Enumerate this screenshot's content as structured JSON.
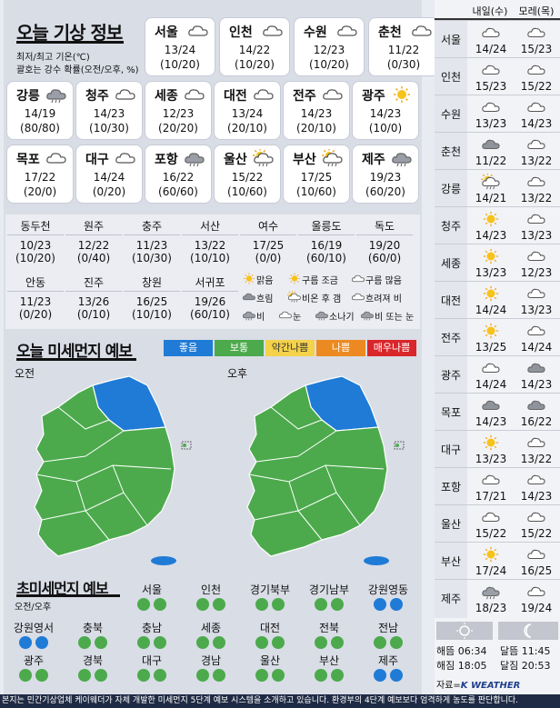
{
  "weather": {
    "title": "오늘 기상 정보",
    "note1": "최저/최고 기온(℃)",
    "note2": "괄호는 강수 확률(오전/오후, %)",
    "cards": [
      {
        "name": "서울",
        "temp": "13/24",
        "rain": "(10/20)",
        "icon": "cloud-icon"
      },
      {
        "name": "인천",
        "temp": "14/22",
        "rain": "(10/20)",
        "icon": "cloud-icon"
      },
      {
        "name": "수원",
        "temp": "12/23",
        "rain": "(10/20)",
        "icon": "cloud-icon"
      },
      {
        "name": "춘천",
        "temp": "11/22",
        "rain": "(0/30)",
        "icon": "cloud-icon"
      },
      {
        "name": "강릉",
        "temp": "14/19",
        "rain": "(80/80)",
        "icon": "rain-cloud-icon"
      },
      {
        "name": "청주",
        "temp": "14/23",
        "rain": "(10/30)",
        "icon": "cloud-icon"
      },
      {
        "name": "세종",
        "temp": "12/23",
        "rain": "(20/20)",
        "icon": "cloud-icon"
      },
      {
        "name": "대전",
        "temp": "13/24",
        "rain": "(20/10)",
        "icon": "cloud-icon"
      },
      {
        "name": "전주",
        "temp": "14/23",
        "rain": "(20/10)",
        "icon": "cloud-icon"
      },
      {
        "name": "광주",
        "temp": "14/23",
        "rain": "(10/0)",
        "icon": "sun-icon"
      },
      {
        "name": "목포",
        "temp": "17/22",
        "rain": "(20/0)",
        "icon": "cloud-icon"
      },
      {
        "name": "대구",
        "temp": "14/24",
        "rain": "(0/20)",
        "icon": "cloud-icon"
      },
      {
        "name": "포항",
        "temp": "16/22",
        "rain": "(60/60)",
        "icon": "rain-cloud-icon"
      },
      {
        "name": "울산",
        "temp": "15/22",
        "rain": "(10/60)",
        "icon": "sun-cloud-rain-icon"
      },
      {
        "name": "부산",
        "temp": "17/25",
        "rain": "(10/60)",
        "icon": "sun-cloud-rain-icon"
      },
      {
        "name": "제주",
        "temp": "19/23",
        "rain": "(60/20)",
        "icon": "rain-cloud-icon"
      }
    ],
    "grid_row1": [
      {
        "name": "동두천",
        "temp": "10/23",
        "rain": "(10/20)"
      },
      {
        "name": "원주",
        "temp": "12/22",
        "rain": "(0/40)"
      },
      {
        "name": "충주",
        "temp": "11/23",
        "rain": "(10/30)"
      },
      {
        "name": "서산",
        "temp": "13/22",
        "rain": "(10/10)"
      },
      {
        "name": "여수",
        "temp": "17/25",
        "rain": "(0/0)"
      },
      {
        "name": "울릉도",
        "temp": "16/19",
        "rain": "(60/10)"
      },
      {
        "name": "독도",
        "temp": "19/20",
        "rain": "(60/0)"
      }
    ],
    "grid_row2": [
      {
        "name": "안동",
        "temp": "11/23",
        "rain": "(0/20)"
      },
      {
        "name": "진주",
        "temp": "13/26",
        "rain": "(0/10)"
      },
      {
        "name": "창원",
        "temp": "16/25",
        "rain": "(10/10)"
      },
      {
        "name": "서귀포",
        "temp": "19/26",
        "rain": "(60/10)"
      }
    ],
    "legend": [
      "맑음",
      "구름 조금",
      "구름 많음",
      "흐림",
      "비온 후 갬",
      "흐려져 비",
      "비",
      "눈",
      "소나기",
      "비 또는 눈"
    ]
  },
  "pm10": {
    "title": "오늘 미세먼지 예보",
    "am": "오전",
    "pm": "오후",
    "levels": [
      {
        "label": "좋음",
        "color": "#1f7bd6"
      },
      {
        "label": "보통",
        "color": "#4caa4c"
      },
      {
        "label": "약간나쁨",
        "color": "#f4d24a"
      },
      {
        "label": "나쁨",
        "color": "#ec8a21"
      },
      {
        "label": "매우나쁨",
        "color": "#d9262a"
      }
    ],
    "good_region_map": "강원영동"
  },
  "pm25": {
    "title": "초미세먼지 예보",
    "subtitle": "오전/오후",
    "rows": [
      [
        {
          "name": "서울",
          "am": "보통",
          "pm": "보통"
        },
        {
          "name": "인천",
          "am": "보통",
          "pm": "보통"
        },
        {
          "name": "경기북부",
          "am": "보통",
          "pm": "보통"
        },
        {
          "name": "경기남부",
          "am": "보통",
          "pm": "보통"
        },
        {
          "name": "강원영동",
          "am": "좋음",
          "pm": "좋음"
        }
      ],
      [
        {
          "name": "강원영서",
          "am": "좋음",
          "pm": "좋음"
        },
        {
          "name": "충북",
          "am": "보통",
          "pm": "보통"
        },
        {
          "name": "충남",
          "am": "보통",
          "pm": "보통"
        },
        {
          "name": "세종",
          "am": "보통",
          "pm": "보통"
        },
        {
          "name": "대전",
          "am": "보통",
          "pm": "보통"
        },
        {
          "name": "전북",
          "am": "보통",
          "pm": "보통"
        },
        {
          "name": "전남",
          "am": "보통",
          "pm": "보통"
        }
      ],
      [
        {
          "name": "광주",
          "am": "보통",
          "pm": "보통"
        },
        {
          "name": "경북",
          "am": "보통",
          "pm": "보통"
        },
        {
          "name": "대구",
          "am": "보통",
          "pm": "보통"
        },
        {
          "name": "경남",
          "am": "보통",
          "pm": "보통"
        },
        {
          "name": "울산",
          "am": "보통",
          "pm": "보통"
        },
        {
          "name": "부산",
          "am": "보통",
          "pm": "보통"
        },
        {
          "name": "제주",
          "am": "좋음",
          "pm": "좋음"
        }
      ]
    ]
  },
  "forecast": {
    "col1": "내일(수)",
    "col2": "모레(목)",
    "rows": [
      {
        "city": "서울",
        "d1": "14/24",
        "d2": "15/23",
        "i1": "cloud-icon",
        "i2": "cloud-icon"
      },
      {
        "city": "인천",
        "d1": "15/23",
        "d2": "15/22",
        "i1": "cloud-icon",
        "i2": "cloud-icon"
      },
      {
        "city": "수원",
        "d1": "13/23",
        "d2": "14/23",
        "i1": "cloud-icon",
        "i2": "cloud-icon"
      },
      {
        "city": "춘천",
        "d1": "11/22",
        "d2": "13/22",
        "i1": "dark-cloud-icon",
        "i2": "cloud-icon"
      },
      {
        "city": "강릉",
        "d1": "14/21",
        "d2": "13/22",
        "i1": "sun-cloud-rain-icon",
        "i2": "cloud-icon"
      },
      {
        "city": "청주",
        "d1": "14/23",
        "d2": "13/23",
        "i1": "sun-icon",
        "i2": "cloud-icon"
      },
      {
        "city": "세종",
        "d1": "13/23",
        "d2": "12/23",
        "i1": "sun-icon",
        "i2": "cloud-icon"
      },
      {
        "city": "대전",
        "d1": "14/24",
        "d2": "13/23",
        "i1": "sun-icon",
        "i2": "cloud-icon"
      },
      {
        "city": "전주",
        "d1": "13/25",
        "d2": "14/24",
        "i1": "sun-icon",
        "i2": "cloud-icon"
      },
      {
        "city": "광주",
        "d1": "14/24",
        "d2": "14/23",
        "i1": "cloud-icon",
        "i2": "dark-cloud-icon"
      },
      {
        "city": "목포",
        "d1": "14/23",
        "d2": "16/22",
        "i1": "dark-cloud-icon",
        "i2": "dark-cloud-icon"
      },
      {
        "city": "대구",
        "d1": "13/23",
        "d2": "13/22",
        "i1": "sun-icon",
        "i2": "cloud-icon"
      },
      {
        "city": "포항",
        "d1": "17/21",
        "d2": "14/23",
        "i1": "cloud-icon",
        "i2": "cloud-icon"
      },
      {
        "city": "울산",
        "d1": "15/22",
        "d2": "15/22",
        "i1": "cloud-icon",
        "i2": "cloud-icon"
      },
      {
        "city": "부산",
        "d1": "17/24",
        "d2": "16/25",
        "i1": "sun-icon",
        "i2": "cloud-icon"
      },
      {
        "city": "제주",
        "d1": "18/23",
        "d2": "19/24",
        "i1": "rain-cloud-icon",
        "i2": "cloud-icon"
      }
    ],
    "sunrise_label": "해뜸",
    "sunrise": "06:34",
    "sunset_label": "해짐",
    "sunset": "18:05",
    "moonrise_label": "달뜸",
    "moonrise": "11:45",
    "moonset_label": "달짐",
    "moonset": "20:53",
    "source_label": "자료=",
    "source": "K WEATHER"
  },
  "footer": "본지는 민간기상업체 케이웨더가 자체 개발한 미세먼지 5단계 예보 시스템을 소개하고 있습니다. 환경부의 4단계 예보보다 엄격하게 농도를 판단합니다."
}
